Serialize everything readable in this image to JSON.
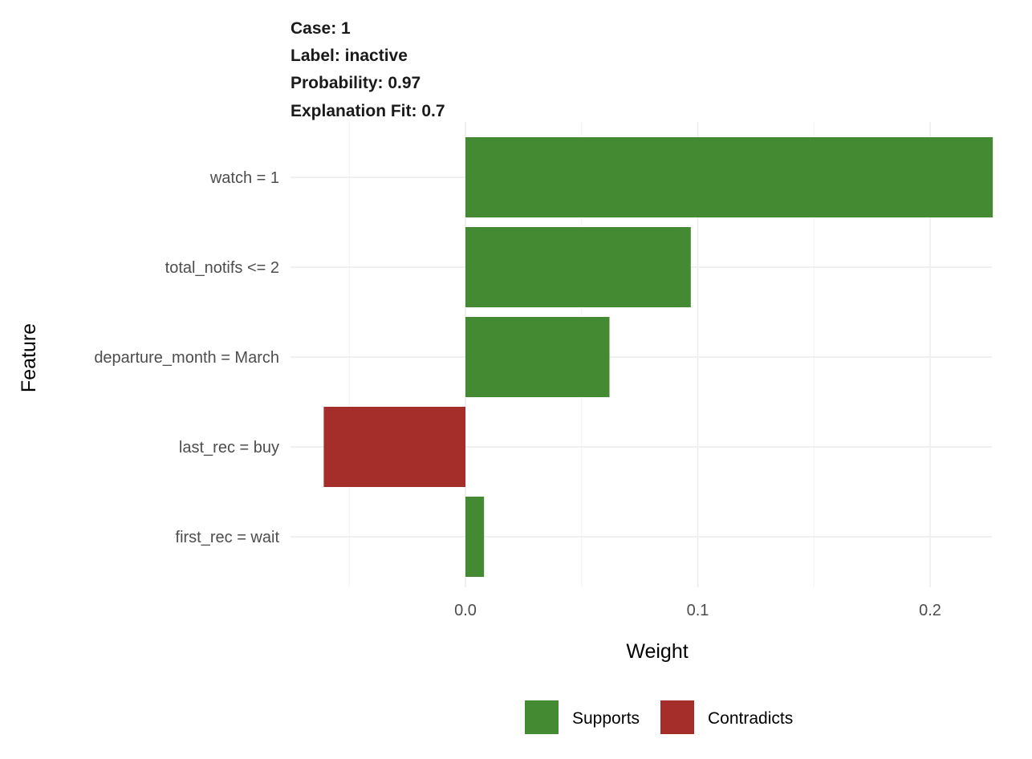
{
  "header": {
    "case": "Case: 1",
    "label": "Label: inactive",
    "probability": "Probability: 0.97",
    "fit": "Explanation Fit: 0.7"
  },
  "colors": {
    "supports": "#448a33",
    "contradicts": "#a52e2b"
  },
  "chart_data": {
    "type": "bar",
    "orientation": "horizontal",
    "xlabel": "Weight",
    "ylabel": "Feature",
    "xlim": [
      -0.0625,
      0.227
    ],
    "x_ticks": [
      {
        "value": 0.0,
        "label": "0.0"
      },
      {
        "value": 0.1,
        "label": "0.1"
      },
      {
        "value": 0.2,
        "label": "0.2"
      }
    ],
    "x_minor_ticks": [
      -0.05,
      0.05,
      0.15
    ],
    "grid": true,
    "legend": {
      "position": "bottom",
      "entries": [
        {
          "label": "Supports",
          "key": "supports"
        },
        {
          "label": "Contradicts",
          "key": "contradicts"
        }
      ]
    },
    "categories": [
      "watch = 1",
      "total_notifs <= 2",
      "departure_month = March",
      "last_rec = buy",
      "first_rec = wait"
    ],
    "values": [
      0.227,
      0.097,
      0.062,
      -0.061,
      0.008
    ],
    "support": [
      "supports",
      "supports",
      "supports",
      "contradicts",
      "supports"
    ]
  }
}
